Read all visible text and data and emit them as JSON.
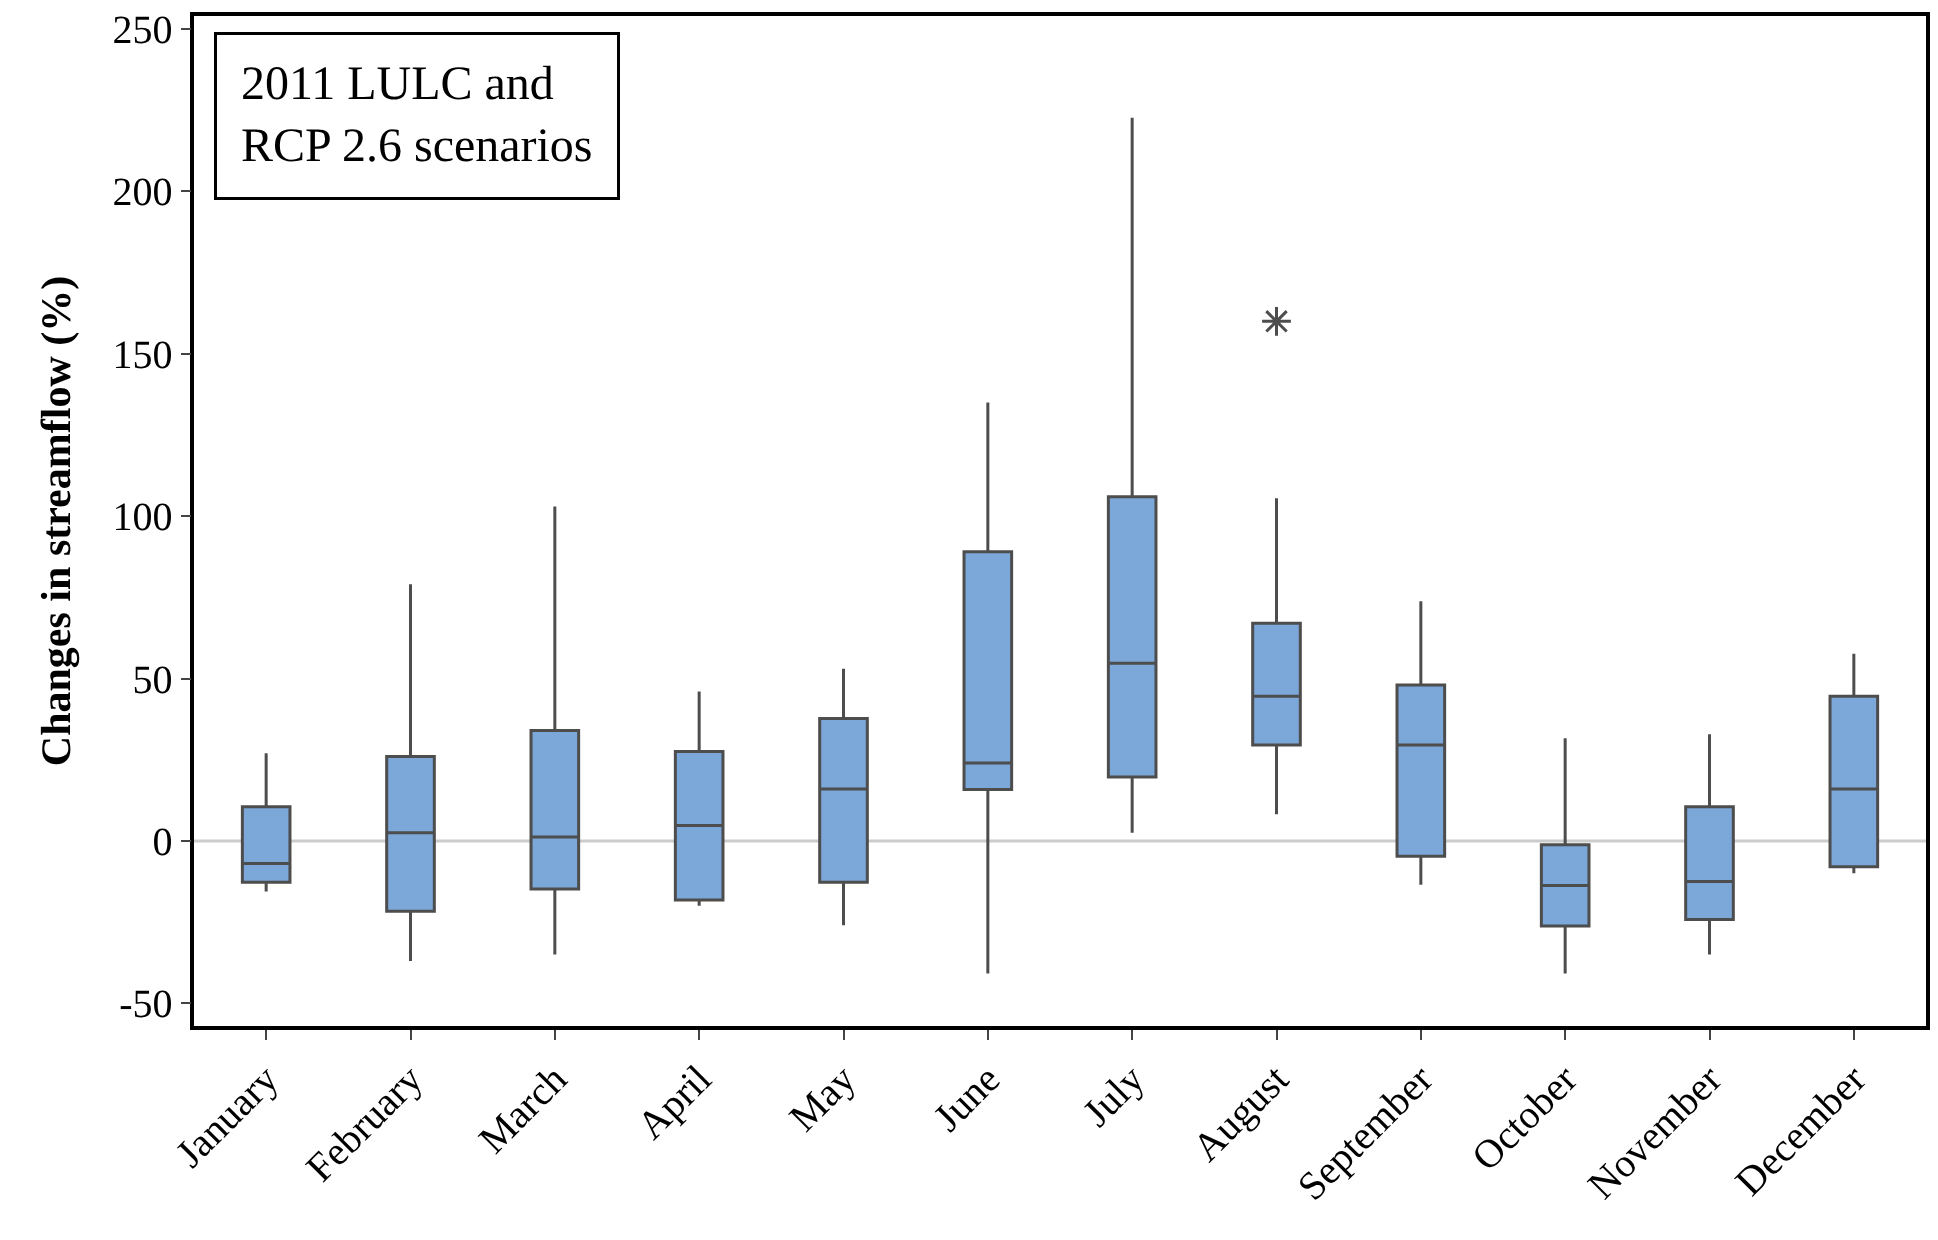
{
  "chart_data": {
    "type": "box",
    "ylabel": "Changes in streamflow (%)",
    "annotations": [
      "2011 LULC and\nRCP 2.6 scenarios"
    ],
    "categories": [
      "January",
      "February",
      "March",
      "April",
      "May",
      "June",
      "July",
      "August",
      "September",
      "October",
      "November",
      "December"
    ],
    "boxes": [
      {
        "low": -15.6,
        "q1": -12.7,
        "median": -7,
        "q3": 10.5,
        "high": 27
      },
      {
        "low": -37,
        "q1": -21.7,
        "median": 2.5,
        "q3": 26,
        "high": 79
      },
      {
        "low": -35,
        "q1": -14.8,
        "median": 1.2,
        "q3": 34,
        "high": 103
      },
      {
        "low": -20,
        "q1": -18.2,
        "median": 4.7,
        "q3": 27.5,
        "high": 46
      },
      {
        "low": -26,
        "q1": -12.7,
        "median": 16,
        "q3": 37.7,
        "high": 53
      },
      {
        "low": -40.8,
        "q1": 15.8,
        "median": 24,
        "q3": 89,
        "high": 135
      },
      {
        "low": 2.5,
        "q1": 19.7,
        "median": 54.7,
        "q3": 106,
        "high": 222.7
      },
      {
        "low": 8.2,
        "q1": 29.5,
        "median": 44.5,
        "q3": 67,
        "high": 105.5,
        "outliers": [
          160
        ]
      },
      {
        "low": -13.5,
        "q1": -4.7,
        "median": 29.5,
        "q3": 48,
        "high": 73.8
      },
      {
        "low": -40.8,
        "q1": -26.2,
        "median": -13.7,
        "q3": -1.2,
        "high": 31.6
      },
      {
        "low": -35,
        "q1": -24.2,
        "median": -12.5,
        "q3": 10.5,
        "high": 32.8
      },
      {
        "low": -10,
        "q1": -8,
        "median": 16,
        "q3": 44.5,
        "high": 57.6
      }
    ],
    "color": "#7ba7d9",
    "ylim": [
      -57,
      254
    ],
    "yticks": [
      -50,
      0,
      50,
      100,
      150,
      200,
      250
    ],
    "ref_lines": [
      {
        "axis": "y",
        "value": 0,
        "color": "#cccccc"
      }
    ],
    "grid": false
  }
}
